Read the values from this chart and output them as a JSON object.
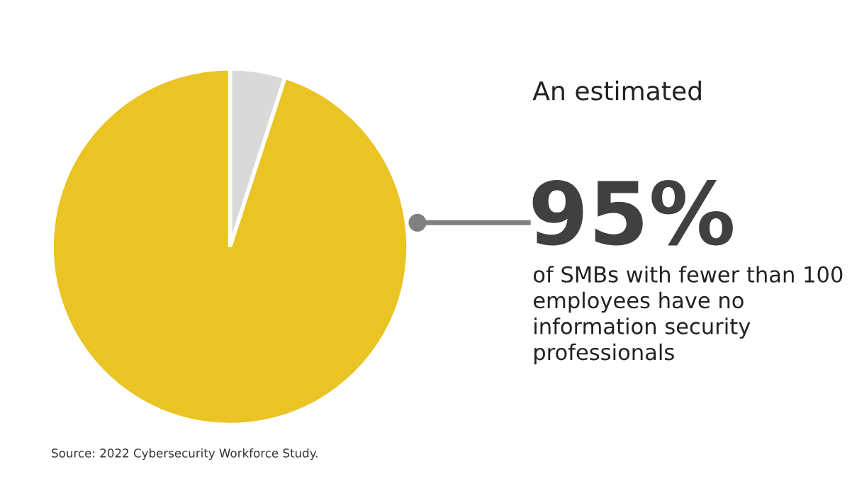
{
  "chart_data": {
    "type": "pie",
    "categories": [
      null,
      null
    ],
    "values": [
      5,
      95
    ],
    "colors": [
      "#d9d9d9",
      "#eac324"
    ],
    "annotations": [
      "An estimated",
      "95%",
      "of SMBs with fewer than 100 employees have no information security professionals",
      "Source: 2022 Cybersecurity Workforce Study."
    ]
  }
}
